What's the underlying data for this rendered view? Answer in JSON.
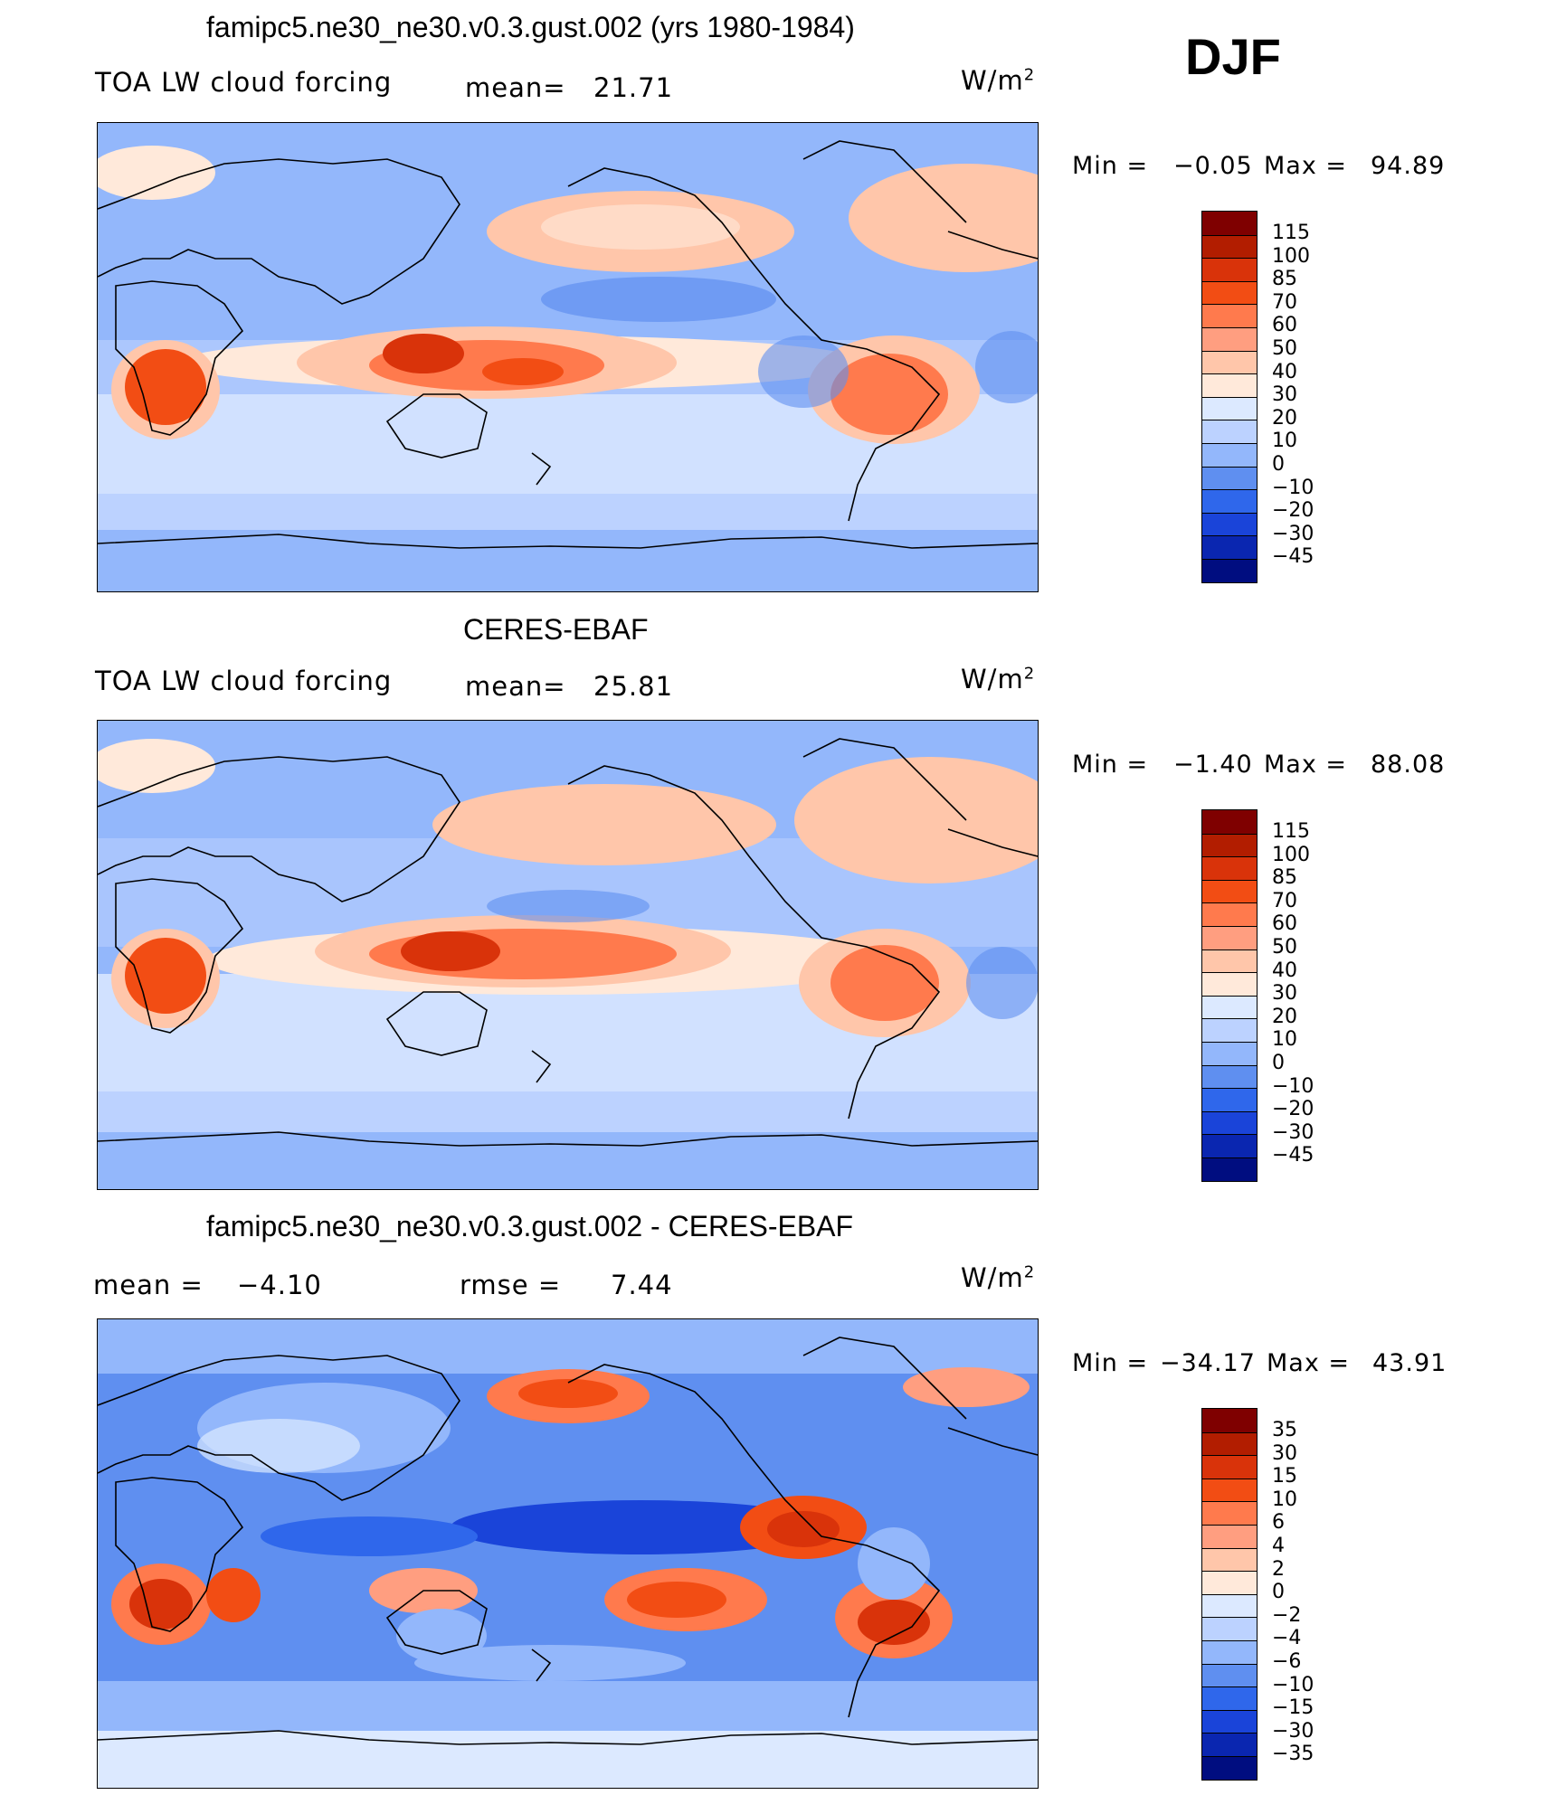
{
  "season": "DJF",
  "panels": [
    {
      "title": "famipc5.ne30_ne30.v0.3.gust.002 (yrs 1980-1984)",
      "left_label": "TOA LW cloud forcing",
      "mean_label": "mean=",
      "mean_value": "21.71",
      "units": "W/m",
      "units_sup": "2",
      "min_label": "Min =",
      "min_value": "−0.05",
      "max_label": "Max =",
      "max_value": "94.89",
      "colorbar_labels": [
        "115",
        "100",
        "85",
        "70",
        "60",
        "50",
        "40",
        "30",
        "20",
        "10",
        "0",
        "−10",
        "−20",
        "−30",
        "−45"
      ],
      "colors": [
        "#7f0000",
        "#b21d00",
        "#d9330a",
        "#f24d14",
        "#ff7a4d",
        "#ff9e80",
        "#ffc6aa",
        "#ffe9da",
        "#dce9ff",
        "#bcd2ff",
        "#93b7fb",
        "#5f8ff0",
        "#2f67eb",
        "#1a44d9",
        "#0a26b0",
        "#000d80"
      ]
    },
    {
      "title": "CERES-EBAF",
      "left_label": "TOA LW cloud forcing",
      "mean_label": "mean=",
      "mean_value": "25.81",
      "units": "W/m",
      "units_sup": "2",
      "min_label": "Min =",
      "min_value": "−1.40",
      "max_label": "Max =",
      "max_value": "88.08",
      "colorbar_labels": [
        "115",
        "100",
        "85",
        "70",
        "60",
        "50",
        "40",
        "30",
        "20",
        "10",
        "0",
        "−10",
        "−20",
        "−30",
        "−45"
      ],
      "colors": [
        "#7f0000",
        "#b21d00",
        "#d9330a",
        "#f24d14",
        "#ff7a4d",
        "#ff9e80",
        "#ffc6aa",
        "#ffe9da",
        "#dce9ff",
        "#bcd2ff",
        "#93b7fb",
        "#5f8ff0",
        "#2f67eb",
        "#1a44d9",
        "#0a26b0",
        "#000d80"
      ]
    },
    {
      "title": "famipc5.ne30_ne30.v0.3.gust.002 - CERES-EBAF",
      "left_label": "mean =",
      "left_value": "−4.10",
      "mean_label": "rmse =",
      "mean_value": "7.44",
      "units": "W/m",
      "units_sup": "2",
      "min_label": "Min =",
      "min_value": "−34.17",
      "max_label": "Max =",
      "max_value": "43.91",
      "colorbar_labels": [
        "35",
        "30",
        "15",
        "10",
        "6",
        "4",
        "2",
        "0",
        "−2",
        "−4",
        "−6",
        "−10",
        "−15",
        "−30",
        "−35"
      ],
      "colors": [
        "#7f0000",
        "#b21d00",
        "#d9330a",
        "#f24d14",
        "#ff7a4d",
        "#ff9e80",
        "#ffc6aa",
        "#ffe9da",
        "#dce9ff",
        "#bcd2ff",
        "#93b7fb",
        "#5f8ff0",
        "#2f67eb",
        "#1a44d9",
        "#0a26b0",
        "#000d80"
      ]
    }
  ]
}
